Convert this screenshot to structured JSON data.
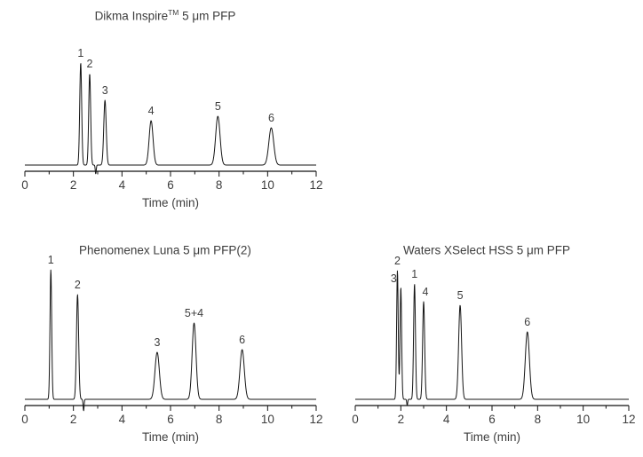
{
  "page": {
    "background": "#ffffff",
    "text_color": "#3d3d3d",
    "trace_color": "#151515",
    "axis_color": "#111111"
  },
  "chart_data": [
    {
      "type": "line",
      "subtype": "chromatogram",
      "title": {
        "prefix": "Dikma Inspire",
        "sup": "TM",
        "suffix": " 5 μm PFP"
      },
      "xlabel": "Time (min)",
      "ylabel": "",
      "xlim": [
        0,
        12
      ],
      "x_ticks": [
        0,
        2,
        4,
        6,
        8,
        10,
        12
      ],
      "minor_tick_step": 1,
      "grid": false,
      "legend": "none",
      "peaks": [
        {
          "label": "1",
          "time": 2.3,
          "intensity": 115,
          "width": 0.04
        },
        {
          "label": "2",
          "time": 2.67,
          "intensity": 103,
          "width": 0.04
        },
        {
          "label": "3",
          "time": 3.3,
          "intensity": 73,
          "width": 0.05
        },
        {
          "label": "4",
          "time": 5.2,
          "intensity": 50,
          "width": 0.08
        },
        {
          "label": "5",
          "time": 7.95,
          "intensity": 55,
          "width": 0.09
        },
        {
          "label": "6",
          "time": 10.15,
          "intensity": 42,
          "width": 0.1
        }
      ],
      "baseline_dips": [
        {
          "time": 2.92,
          "depth": 10,
          "width": 0.02
        }
      ]
    },
    {
      "type": "line",
      "subtype": "chromatogram",
      "title": {
        "prefix": "Phenomenex Luna 5 μm PFP(2)",
        "sup": "",
        "suffix": ""
      },
      "xlabel": "Time (min)",
      "ylabel": "",
      "xlim": [
        0,
        12
      ],
      "x_ticks": [
        0,
        2,
        4,
        6,
        8,
        10,
        12
      ],
      "minor_tick_step": 1,
      "grid": false,
      "legend": "none",
      "peaks": [
        {
          "label": "1",
          "time": 1.07,
          "intensity": 146,
          "width": 0.035
        },
        {
          "label": "2",
          "time": 2.17,
          "intensity": 118,
          "width": 0.045
        },
        {
          "label": "3",
          "time": 5.45,
          "intensity": 53,
          "width": 0.09
        },
        {
          "label": "5+4",
          "time": 6.97,
          "intensity": 86,
          "width": 0.08
        },
        {
          "label": "6",
          "time": 8.95,
          "intensity": 56,
          "width": 0.09
        }
      ],
      "baseline_dips": [
        {
          "time": 2.42,
          "depth": 13,
          "width": 0.02
        }
      ]
    },
    {
      "type": "line",
      "subtype": "chromatogram",
      "title": {
        "prefix": "Waters XSelect HSS 5 μm PFP",
        "sup": "",
        "suffix": ""
      },
      "xlabel": "Time (min)",
      "ylabel": "",
      "xlim": [
        0,
        12
      ],
      "x_ticks": [
        0,
        2,
        4,
        6,
        8,
        10,
        12
      ],
      "minor_tick_step": 1,
      "grid": false,
      "legend": "none",
      "peaks": [
        {
          "label": "2",
          "time": 1.85,
          "intensity": 145,
          "width": 0.035
        },
        {
          "label": "3",
          "time": 2.0,
          "intensity": 126,
          "width": 0.035,
          "label_dx": -8,
          "label_dy": 1
        },
        {
          "label": "1",
          "time": 2.6,
          "intensity": 130,
          "width": 0.04
        },
        {
          "label": "4",
          "time": 3.0,
          "intensity": 110,
          "width": 0.045,
          "label_dx": 2
        },
        {
          "label": "5",
          "time": 4.6,
          "intensity": 106,
          "width": 0.065
        },
        {
          "label": "6",
          "time": 7.55,
          "intensity": 76,
          "width": 0.09
        }
      ],
      "baseline_dips": [
        {
          "time": 2.28,
          "depth": 7,
          "width": 0.02
        }
      ]
    }
  ]
}
